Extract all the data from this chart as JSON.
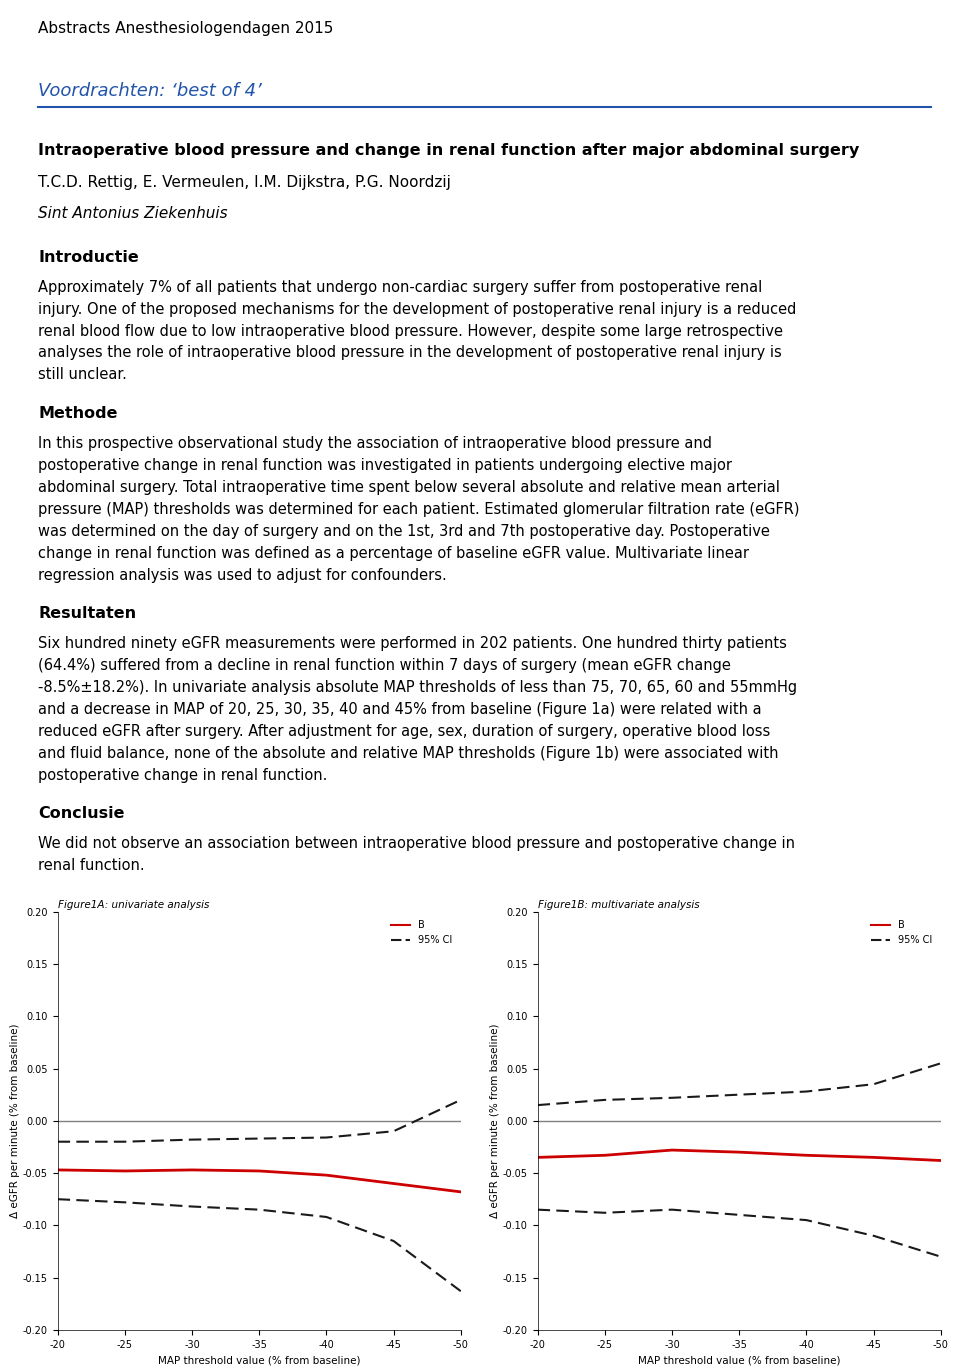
{
  "page_title": "Abstracts Anesthesiologendagen 2015",
  "section_header": "Voordrachten: ‘best of 4’",
  "paper_title": "Intraoperative blood pressure and change in renal function after major abdominal surgery",
  "authors": "T.C.D. Rettig, E. Vermeulen, I.M. Dijkstra, P.G. Noordzij",
  "institute": "Sint Antonius Ziekenhuis",
  "intro_header": "Introductie",
  "intro_text": "Approximately 7% of all patients that undergo non-cardiac surgery suffer from postoperative renal injury. One of the proposed mechanisms for the development of postoperative renal injury is a reduced renal blood flow due to low intraoperative blood pressure. However, despite some large retrospective analyses the role of intraoperative blood pressure in the development of postoperative renal injury is still unclear.",
  "method_header": "Methode",
  "method_text": "In this prospective observational study the association of intraoperative blood pressure and postoperative change in renal function was investigated in patients undergoing elective major abdominal surgery. Total intraoperative time spent below several absolute and relative mean arterial pressure (MAP) thresholds was determined for each patient. Estimated glomerular filtration rate (eGFR) was determined on the day of surgery and on the 1st, 3rd and 7th postoperative day. Postoperative change in renal function was defined as a percentage of baseline eGFR value. Multivariate linear regression analysis was used to adjust for confounders.",
  "result_header": "Resultaten",
  "result_text": "Six hundred ninety eGFR measurements were performed in 202 patients. One hundred thirty patients (64.4%) suffered from a decline in renal function within 7 days of surgery (mean eGFR change -8.5%±18.2%). In univariate analysis absolute MAP thresholds of less than 75, 70, 65, 60 and 55mmHg and a decrease in MAP of 20, 25, 30, 35, 40 and 45% from baseline (Figure 1a) were related with a reduced eGFR after surgery. After adjustment for age, sex, duration of surgery, operative blood loss and fluid balance, none of the absolute and relative MAP thresholds (Figure 1b) were associated with postoperative change in renal function.",
  "conclusion_header": "Conclusie",
  "conclusion_text": "We did not observe an association between intraoperative blood pressure and postoperative change in renal function.",
  "fig1a_title": "Figure1A: univariate analysis",
  "fig1b_title": "Figure1B: multivariate analysis",
  "xlabel": "MAP threshold value (% from baseline)",
  "ylabel": "Δ eGFR per minute (% from baseline)",
  "x_values": [
    -20,
    -25,
    -30,
    -35,
    -40,
    -45,
    -50
  ],
  "fig1a_B": [
    -0.047,
    -0.048,
    -0.047,
    -0.048,
    -0.052,
    -0.06,
    -0.068
  ],
  "fig1a_CI_upper": [
    -0.02,
    -0.02,
    -0.018,
    -0.017,
    -0.016,
    -0.01,
    0.02
  ],
  "fig1a_CI_lower": [
    -0.075,
    -0.078,
    -0.082,
    -0.085,
    -0.092,
    -0.115,
    -0.163
  ],
  "fig1b_B": [
    -0.035,
    -0.033,
    -0.028,
    -0.03,
    -0.033,
    -0.035,
    -0.038
  ],
  "fig1b_CI_upper": [
    0.015,
    0.02,
    0.022,
    0.025,
    0.028,
    0.035,
    0.055
  ],
  "fig1b_CI_lower": [
    -0.085,
    -0.088,
    -0.085,
    -0.09,
    -0.095,
    -0.11,
    -0.13
  ],
  "line_color_B": "#cc0000",
  "line_color_CI": "#1a1a1a",
  "bg_color": "#ffffff",
  "text_color": "#000000",
  "header_color": "#2255aa",
  "rule_color": "#2255aa",
  "ylim": [
    -0.2,
    0.2
  ],
  "yticks": [
    -0.2,
    -0.15,
    -0.1,
    -0.05,
    0.0,
    0.05,
    0.1,
    0.15,
    0.2
  ]
}
